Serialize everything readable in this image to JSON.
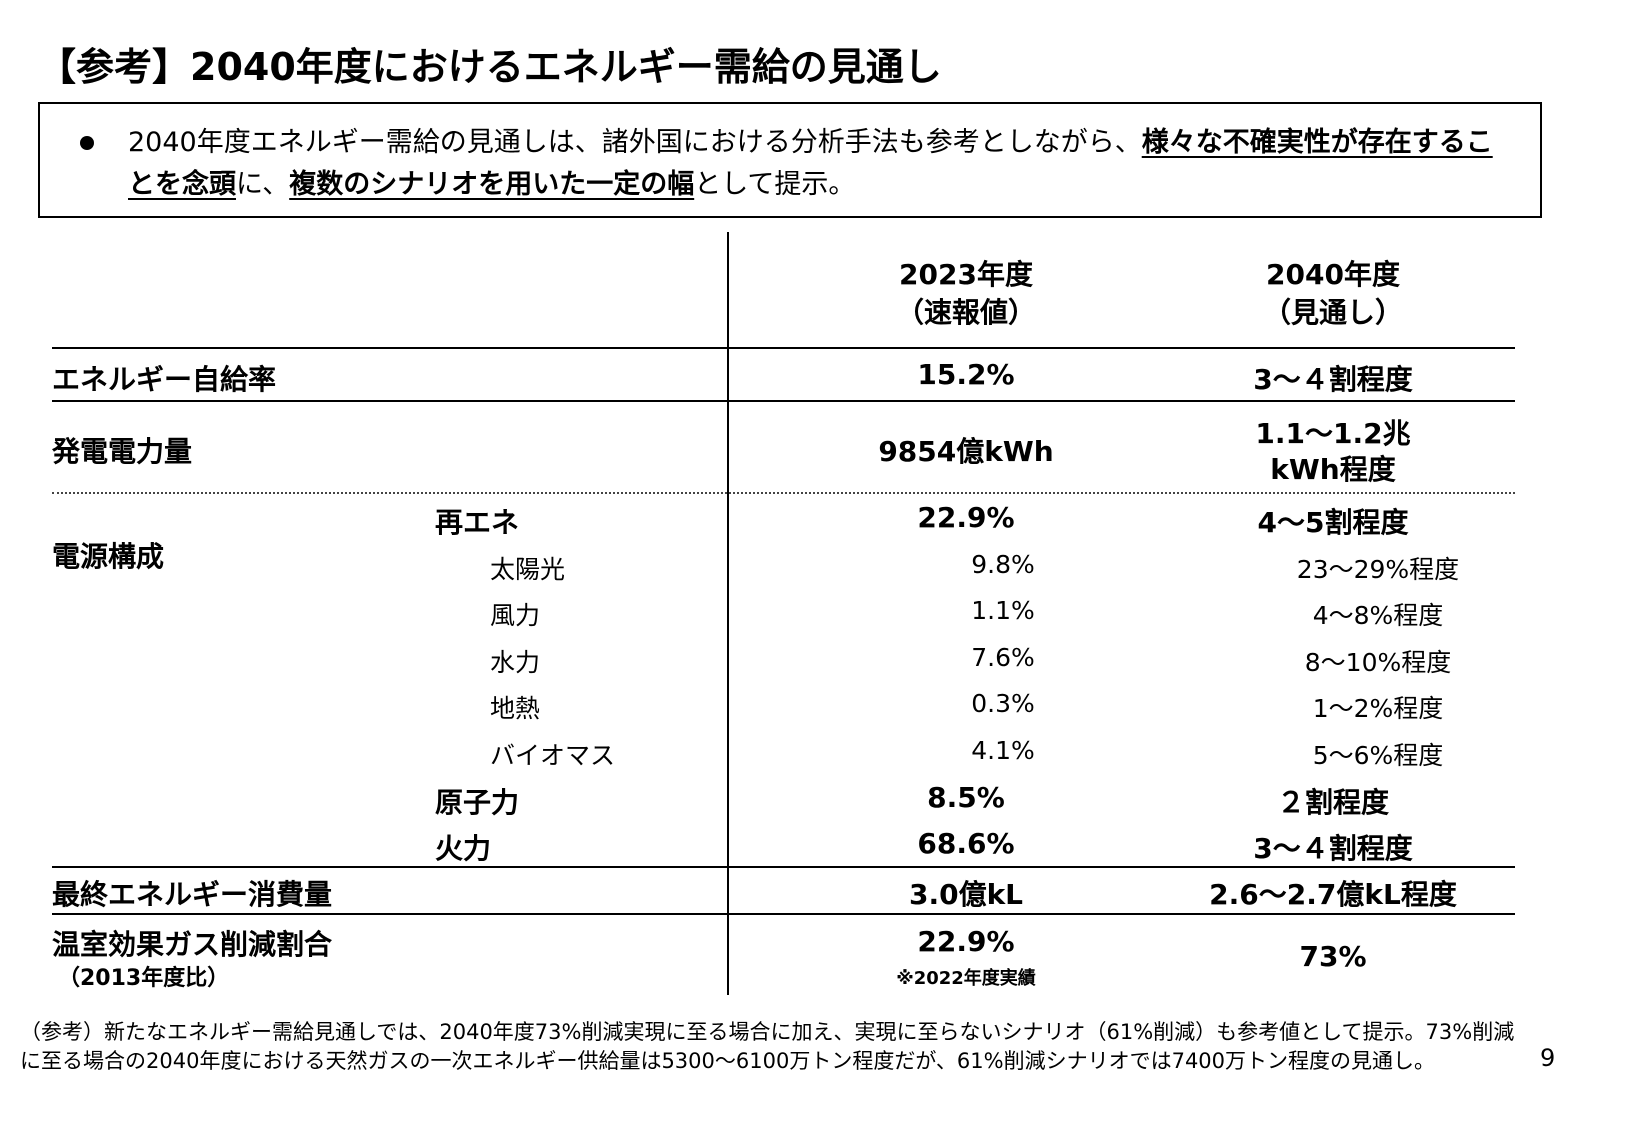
{
  "title": "【参考】2040年度におけるエネルギー需給の見通し",
  "summary": {
    "segments": [
      {
        "text": "2040年度エネルギー需給の見通しは、諸外国における分析手法も参考としながら、",
        "emphasis": false
      },
      {
        "text": "様々な不確実性が存在することを念頭",
        "emphasis": true
      },
      {
        "text": "に、",
        "emphasis": false
      },
      {
        "text": "複数のシナリオを用いた一定の幅",
        "emphasis": true
      },
      {
        "text": "として提示。",
        "emphasis": false
      }
    ]
  },
  "table": {
    "columns": [
      [
        "2023年度",
        "（速報値）"
      ],
      [
        "2040年度",
        "（見通し）"
      ]
    ],
    "rows": [
      {
        "label": [
          "エネルギー自給率"
        ],
        "values": [
          [
            "15.2%"
          ],
          [
            "3～４割程度"
          ]
        ]
      },
      {
        "label": [
          "発電電力量"
        ],
        "values": [
          [
            "9854億kWh"
          ],
          [
            "1.1～1.2兆",
            "kWh程度"
          ]
        ]
      },
      {
        "label": [
          "電源構成"
        ],
        "items": [
          {
            "label": "再エネ",
            "level": 1,
            "values": [
              "22.9%",
              "4～5割程度"
            ]
          },
          {
            "label": "太陽光",
            "level": 2,
            "values": [
              "9.8%",
              "23～29%程度"
            ]
          },
          {
            "label": "風力",
            "level": 2,
            "values": [
              "1.1%",
              "4～8%程度"
            ]
          },
          {
            "label": "水力",
            "level": 2,
            "values": [
              "7.6%",
              "8～10%程度"
            ]
          },
          {
            "label": "地熱",
            "level": 2,
            "values": [
              "0.3%",
              "1～2%程度"
            ]
          },
          {
            "label": "バイオマス",
            "level": 2,
            "values": [
              "4.1%",
              "5～6%程度"
            ]
          },
          {
            "label": "原子力",
            "level": 1,
            "values": [
              "8.5%",
              "２割程度"
            ]
          },
          {
            "label": "火力",
            "level": 1,
            "values": [
              "68.6%",
              "3～４割程度"
            ]
          }
        ]
      },
      {
        "label": [
          "最終エネルギー消費量"
        ],
        "values": [
          [
            "3.0億kL"
          ],
          [
            "2.6～2.7億kL程度"
          ]
        ]
      },
      {
        "label": [
          "温室効果ガス削減割合",
          "（2013年度比）"
        ],
        "values": [
          [
            "22.9%",
            "※2022年度実績"
          ],
          [
            "73%"
          ]
        ]
      }
    ]
  },
  "footnote": "（参考）新たなエネルギー需給見通しでは、2040年度73%削減実現に至る場合に加え、実現に至らないシナリオ（61%削減）も参考値として提示。73%削減に至る場合の2040年度における天然ガスの一次エネルギー供給量は5300～6100万トン程度だが、61%削減シナリオでは7400万トン程度の見通し。",
  "page_number": "9"
}
